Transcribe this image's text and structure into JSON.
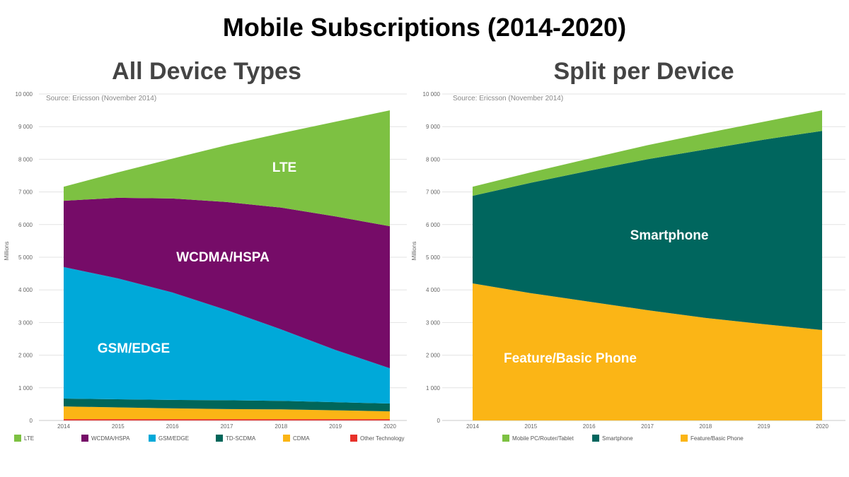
{
  "title": "Mobile Subscriptions (2014-2020)",
  "chart_data": [
    {
      "type": "area",
      "stacked": true,
      "title": "All Device Types",
      "source": "Source: Ericsson (November 2014)",
      "ylabel": "Millions",
      "xlabel": "",
      "ylim": [
        0,
        10000
      ],
      "yticks": [
        0,
        1000,
        2000,
        3000,
        4000,
        5000,
        6000,
        7000,
        8000,
        9000,
        10000
      ],
      "ytick_labels": [
        "0",
        "1 000",
        "2 000",
        "3 000",
        "4 000",
        "5 000",
        "6 000",
        "7 000",
        "8 000",
        "9 000",
        "10 000"
      ],
      "grid": true,
      "legend_position": "bottom",
      "categories": [
        "2014",
        "2015",
        "2016",
        "2017",
        "2018",
        "2019",
        "2020"
      ],
      "series": [
        {
          "name": "LTE",
          "color": "#7dc142",
          "area_label": "LTE",
          "values": [
            430,
            780,
            1220,
            1740,
            2280,
            2900,
            3550
          ]
        },
        {
          "name": "WCDMA/HSPA",
          "color": "#760c68",
          "area_label": "WCDMA/HSPA",
          "values": [
            2030,
            2470,
            2880,
            3310,
            3730,
            4090,
            4350
          ]
        },
        {
          "name": "GSM/EDGE",
          "color": "#00a9d9",
          "area_label": "GSM/EDGE",
          "values": [
            4030,
            3700,
            3290,
            2760,
            2190,
            1600,
            1080
          ]
        },
        {
          "name": "TD-SCDMA",
          "color": "#00665a",
          "values": [
            240,
            250,
            260,
            270,
            260,
            250,
            240
          ]
        },
        {
          "name": "CDMA",
          "color": "#fbb515",
          "values": [
            390,
            360,
            330,
            310,
            300,
            270,
            240
          ]
        },
        {
          "name": "Other Technology",
          "color": "#e8312a",
          "values": [
            40,
            40,
            40,
            40,
            40,
            40,
            40
          ]
        }
      ]
    },
    {
      "type": "area",
      "stacked": true,
      "title": "Split per Device",
      "source": "Source: Ericsson (November 2014)",
      "ylabel": "Millions",
      "xlabel": "",
      "ylim": [
        0,
        10000
      ],
      "yticks": [
        0,
        1000,
        2000,
        3000,
        4000,
        5000,
        6000,
        7000,
        8000,
        9000,
        10000
      ],
      "ytick_labels": [
        "0",
        "1 000",
        "2 000",
        "3 000",
        "4 000",
        "5 000",
        "6 000",
        "7 000",
        "8 000",
        "9 000",
        "10 000"
      ],
      "grid": true,
      "legend_position": "bottom",
      "categories": [
        "2014",
        "2015",
        "2016",
        "2017",
        "2018",
        "2019",
        "2020"
      ],
      "series": [
        {
          "name": "Mobile PC/Router/Tablet",
          "color": "#7dc142",
          "values": [
            280,
            320,
            370,
            430,
            500,
            550,
            630
          ]
        },
        {
          "name": "Smartphone",
          "color": "#00665e",
          "area_label": "Smartphone",
          "values": [
            2680,
            3380,
            4010,
            4620,
            5160,
            5650,
            6100
          ]
        },
        {
          "name": "Feature/Basic Phone",
          "color": "#fbb516",
          "area_label": "Feature/Basic Phone",
          "values": [
            4200,
            3900,
            3640,
            3380,
            3140,
            2950,
            2770
          ]
        }
      ]
    }
  ]
}
